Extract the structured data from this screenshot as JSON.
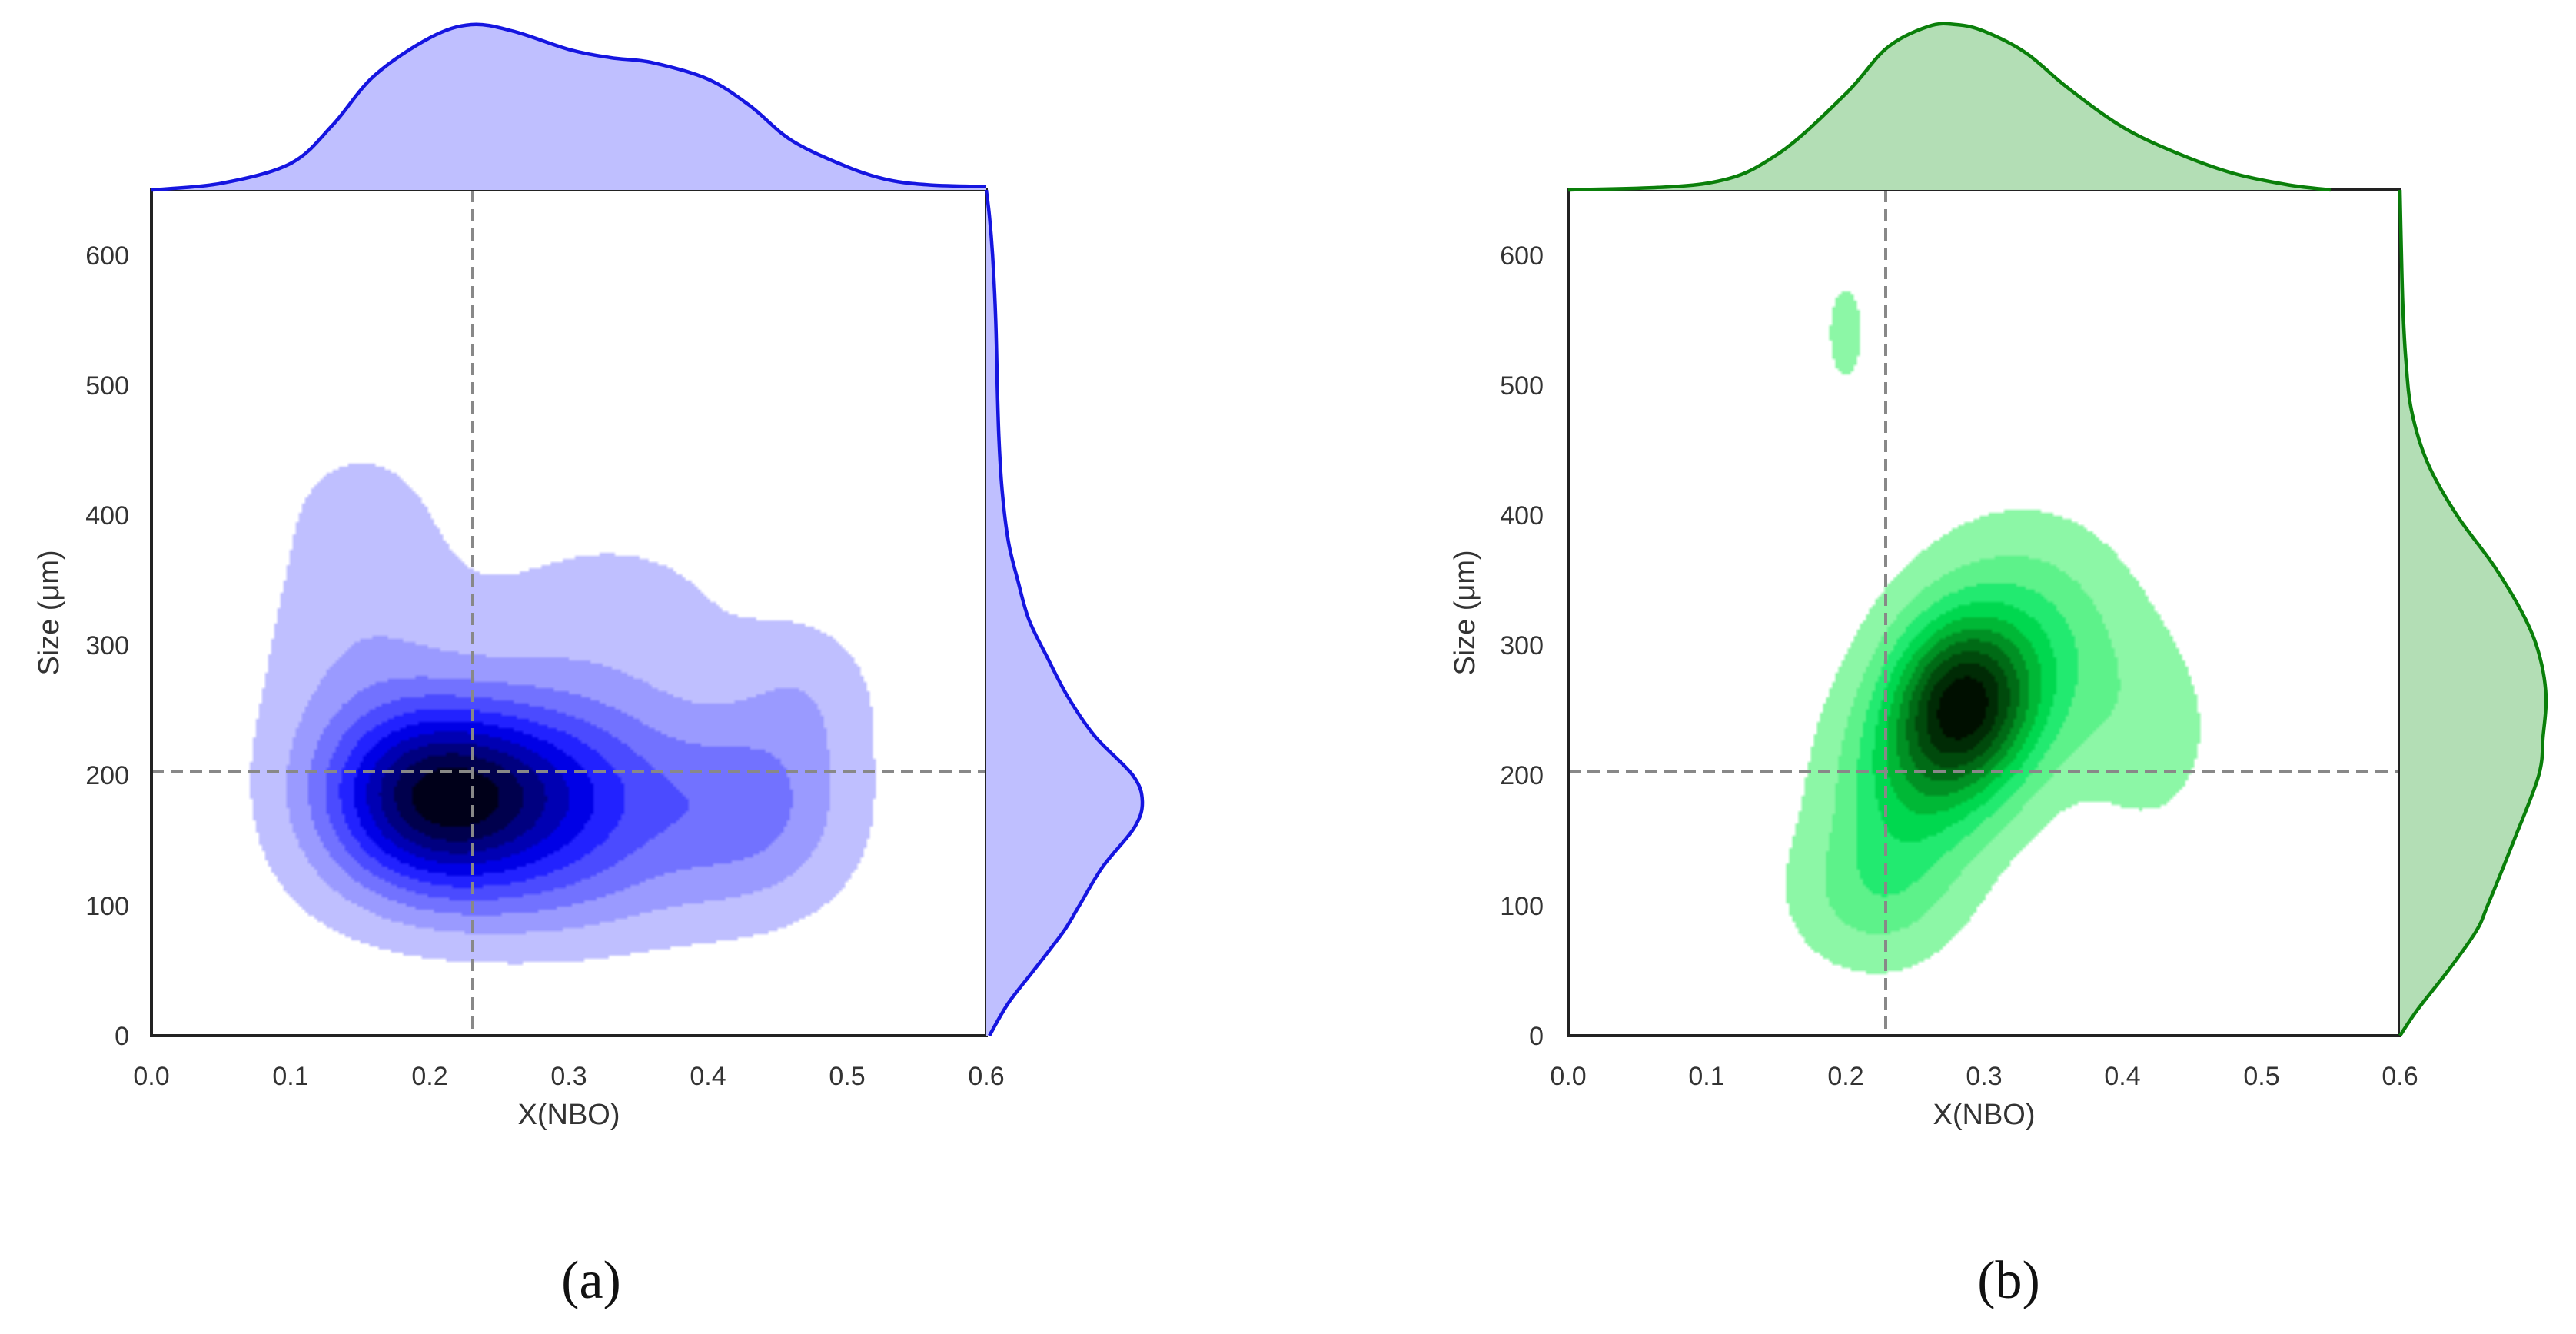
{
  "figure": {
    "panel_labels": [
      "(a)",
      "(b)"
    ]
  },
  "chart_data": [
    {
      "type": "kde-joint",
      "panel": "(a)",
      "xlabel": "X(NBO)",
      "ylabel": "Size (μm)",
      "xlim": [
        0.0,
        0.6
      ],
      "ylim": [
        0,
        650
      ],
      "xticks": [
        "0.0",
        "0.1",
        "0.2",
        "0.3",
        "0.4",
        "0.5",
        "0.6"
      ],
      "yticks": [
        "0",
        "100",
        "200",
        "300",
        "400",
        "500",
        "600"
      ],
      "grid": false,
      "reference_lines": {
        "x": 0.23,
        "y": 200
      },
      "color": "#1515e0",
      "fill_color": "#bfbfff",
      "contour_colors": [
        "#bfbfff",
        "#9a9aff",
        "#7272ff",
        "#4b4bff",
        "#2222ff",
        "#0000e6",
        "#0000b3",
        "#000080",
        "#00004d",
        "#000019"
      ],
      "kde_components": [
        {
          "x": 0.205,
          "y": 183,
          "sx": 0.055,
          "sy": 48,
          "w": 1.0
        },
        {
          "x": 0.3,
          "y": 185,
          "sx": 0.06,
          "sy": 55,
          "w": 0.5
        },
        {
          "x": 0.43,
          "y": 175,
          "sx": 0.05,
          "sy": 50,
          "w": 0.32
        },
        {
          "x": 0.15,
          "y": 290,
          "sx": 0.05,
          "sy": 80,
          "w": 0.15
        },
        {
          "x": 0.47,
          "y": 260,
          "sx": 0.035,
          "sy": 40,
          "w": 0.12
        },
        {
          "x": 0.33,
          "y": 320,
          "sx": 0.08,
          "sy": 60,
          "w": 0.1
        },
        {
          "x": 0.15,
          "y": 410,
          "sx": 0.04,
          "sy": 40,
          "w": 0.06
        },
        {
          "x": 0.28,
          "y": 110,
          "sx": 0.1,
          "sy": 35,
          "w": 0.1
        }
      ],
      "x_marginal": {
        "x": [
          0.0,
          0.05,
          0.1,
          0.13,
          0.16,
          0.2,
          0.23,
          0.26,
          0.3,
          0.33,
          0.36,
          0.4,
          0.43,
          0.46,
          0.5,
          0.53,
          0.56,
          0.6
        ],
        "density": [
          0.0,
          0.04,
          0.16,
          0.39,
          0.69,
          0.92,
          1.0,
          0.96,
          0.85,
          0.8,
          0.77,
          0.67,
          0.51,
          0.3,
          0.14,
          0.06,
          0.03,
          0.02
        ]
      },
      "y_marginal": {
        "y": [
          0,
          25,
          50,
          80,
          100,
          130,
          160,
          180,
          200,
          230,
          260,
          290,
          320,
          350,
          380,
          420,
          460,
          500,
          550,
          600,
          630,
          650
        ],
        "density": [
          0.02,
          0.14,
          0.3,
          0.49,
          0.59,
          0.74,
          0.94,
          0.99,
          0.93,
          0.69,
          0.52,
          0.39,
          0.27,
          0.2,
          0.14,
          0.1,
          0.08,
          0.07,
          0.06,
          0.04,
          0.02,
          0.0
        ]
      }
    },
    {
      "type": "kde-joint",
      "panel": "(b)",
      "xlabel": "X(NBO)",
      "ylabel": "Size (μm)",
      "xlim": [
        0.0,
        0.6
      ],
      "ylim": [
        0,
        650
      ],
      "xticks": [
        "0.0",
        "0.1",
        "0.2",
        "0.3",
        "0.4",
        "0.5",
        "0.6"
      ],
      "yticks": [
        "0",
        "100",
        "200",
        "300",
        "400",
        "500",
        "600"
      ],
      "grid": false,
      "reference_lines": {
        "x": 0.23,
        "y": 200
      },
      "color": "#0a7f0a",
      "fill_color": "#b3deb5",
      "contour_colors": [
        "#8cf7a6",
        "#5df28a",
        "#22ea70",
        "#00d84f",
        "#00b836",
        "#009124",
        "#006b16",
        "#004a0c",
        "#002b05",
        "#000f00"
      ],
      "kde_components": [
        {
          "x": 0.285,
          "y": 255,
          "sx": 0.035,
          "sy": 45,
          "w": 1.0
        },
        {
          "x": 0.25,
          "y": 195,
          "sx": 0.04,
          "sy": 50,
          "w": 0.45
        },
        {
          "x": 0.33,
          "y": 300,
          "sx": 0.05,
          "sy": 60,
          "w": 0.35
        },
        {
          "x": 0.22,
          "y": 110,
          "sx": 0.04,
          "sy": 40,
          "w": 0.25
        },
        {
          "x": 0.42,
          "y": 230,
          "sx": 0.035,
          "sy": 55,
          "w": 0.12
        },
        {
          "x": 0.2,
          "y": 540,
          "sx": 0.022,
          "sy": 65,
          "w": 0.09
        }
      ],
      "x_marginal": {
        "x": [
          0.0,
          0.1,
          0.15,
          0.2,
          0.23,
          0.26,
          0.28,
          0.3,
          0.33,
          0.36,
          0.4,
          0.44,
          0.48,
          0.52,
          0.55
        ],
        "density": [
          0.0,
          0.04,
          0.21,
          0.58,
          0.86,
          0.99,
          1.0,
          0.96,
          0.83,
          0.62,
          0.38,
          0.22,
          0.1,
          0.03,
          0.0
        ]
      },
      "y_marginal": {
        "y": [
          0,
          20,
          50,
          80,
          100,
          150,
          200,
          230,
          260,
          290,
          320,
          360,
          400,
          440,
          480,
          520,
          560,
          600,
          650
        ],
        "density": [
          0.0,
          0.12,
          0.33,
          0.52,
          0.6,
          0.78,
          0.95,
          0.98,
          1.0,
          0.96,
          0.86,
          0.65,
          0.39,
          0.19,
          0.08,
          0.04,
          0.02,
          0.01,
          0.0
        ]
      }
    }
  ]
}
